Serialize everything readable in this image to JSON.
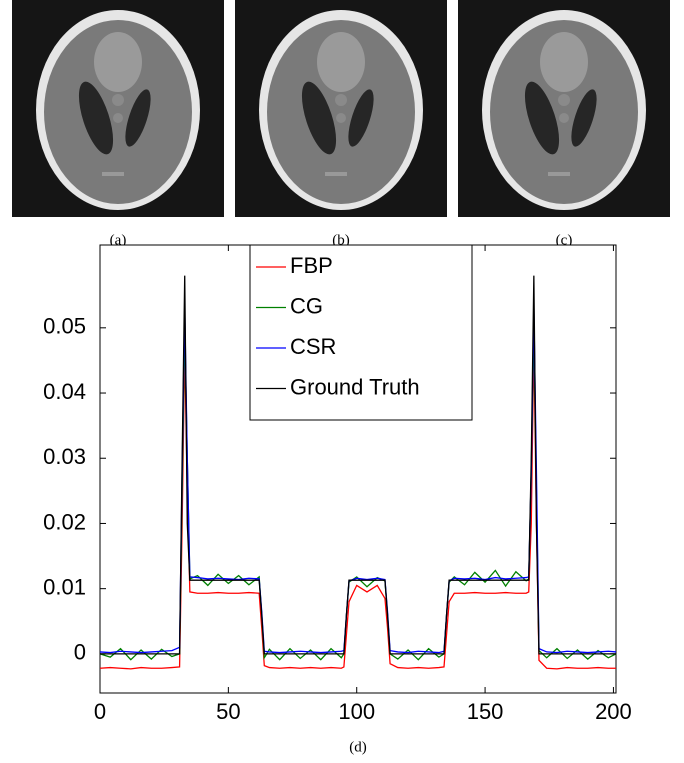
{
  "images": [
    {
      "caption": "(a)"
    },
    {
      "caption": "(b)"
    },
    {
      "caption": "(c)"
    }
  ],
  "chart_data": {
    "type": "line",
    "caption": "(d)",
    "x": [
      0,
      4,
      8,
      12,
      16,
      20,
      24,
      28,
      31,
      32,
      33,
      34,
      35,
      38,
      42,
      46,
      50,
      54,
      58,
      62,
      63,
      64,
      66,
      70,
      74,
      78,
      82,
      86,
      90,
      94,
      95,
      96,
      97,
      100,
      104,
      108,
      111,
      112,
      113,
      116,
      120,
      124,
      128,
      132,
      134,
      135,
      136,
      138,
      142,
      146,
      150,
      154,
      158,
      162,
      166,
      167,
      168,
      169,
      170,
      171,
      174,
      178,
      182,
      186,
      190,
      194,
      198,
      201
    ],
    "series": [
      {
        "name": "FBP",
        "color": "#ff0000",
        "values": [
          -0.0022,
          -0.0021,
          -0.0022,
          -0.0023,
          -0.0021,
          -0.0022,
          -0.0022,
          -0.0021,
          -0.002,
          0.02,
          0.047,
          0.025,
          0.0095,
          0.0093,
          0.0093,
          0.0094,
          0.0093,
          0.0093,
          0.0094,
          0.0093,
          0.004,
          -0.0018,
          -0.0021,
          -0.0022,
          -0.0021,
          -0.0022,
          -0.0021,
          -0.0022,
          -0.0021,
          -0.0022,
          -0.002,
          0.003,
          0.008,
          0.0105,
          0.0095,
          0.0105,
          0.0085,
          0.004,
          -0.0015,
          -0.0021,
          -0.0022,
          -0.0021,
          -0.0022,
          -0.0021,
          -0.002,
          0.003,
          0.008,
          0.0093,
          0.0093,
          0.0094,
          0.0093,
          0.0093,
          0.0094,
          0.0093,
          0.0093,
          0.0095,
          0.02,
          0.048,
          0.02,
          -0.001,
          -0.0022,
          -0.0023,
          -0.0021,
          -0.0022,
          -0.0022,
          -0.0021,
          -0.0022,
          -0.0022
        ]
      },
      {
        "name": "CG",
        "color": "#008000",
        "values": [
          0,
          -0.0005,
          0.0008,
          -0.0009,
          0.0006,
          -0.0008,
          0.0007,
          -0.0004,
          0,
          0.025,
          0.05,
          0.03,
          0.0115,
          0.012,
          0.0105,
          0.0122,
          0.0108,
          0.012,
          0.0106,
          0.0118,
          0.006,
          -0.0006,
          0.0007,
          -0.0009,
          0.0008,
          -0.0007,
          0.0006,
          -0.0009,
          0.0008,
          -0.0006,
          0,
          0.006,
          0.011,
          0.0118,
          0.0103,
          0.0117,
          0.0112,
          0.006,
          0,
          -0.0008,
          0.0006,
          -0.0009,
          0.0008,
          -0.0005,
          0,
          0.006,
          0.011,
          0.0118,
          0.0106,
          0.0125,
          0.011,
          0.0128,
          0.0104,
          0.0126,
          0.0112,
          0.0115,
          0.028,
          0.05,
          0.025,
          0.0005,
          -0.0006,
          0.0008,
          -0.0007,
          0.0006,
          -0.0008,
          0.0005,
          -0.0006,
          0
        ]
      },
      {
        "name": "CSR",
        "color": "#0000ff",
        "values": [
          0.0003,
          0.0002,
          0.0004,
          0.0003,
          0.0002,
          0.0003,
          0.0004,
          0.0005,
          0.001,
          0.028,
          0.053,
          0.03,
          0.0118,
          0.0117,
          0.0115,
          0.0116,
          0.0115,
          0.0114,
          0.0116,
          0.0115,
          0.0065,
          0.0004,
          0.0003,
          0.0002,
          0.0003,
          0.0004,
          0.0003,
          0.0002,
          0.0003,
          0.0004,
          0.0005,
          0.006,
          0.0112,
          0.0116,
          0.0114,
          0.0116,
          0.0114,
          0.0065,
          0.0005,
          0.0003,
          0.0002,
          0.0004,
          0.0003,
          0.0002,
          0.0004,
          0.006,
          0.0112,
          0.0116,
          0.0115,
          0.0116,
          0.0114,
          0.0117,
          0.0115,
          0.0116,
          0.0117,
          0.0118,
          0.028,
          0.053,
          0.028,
          0.0008,
          0.0003,
          0.0002,
          0.0004,
          0.0003,
          0.0002,
          0.0003,
          0.0004,
          0.0003
        ]
      },
      {
        "name": "Ground Truth",
        "color": "#000000",
        "values": [
          0,
          0,
          0,
          0,
          0,
          0,
          0,
          0,
          0,
          0.03,
          0.058,
          0.02,
          0.0113,
          0.0113,
          0.0113,
          0.0113,
          0.0113,
          0.0113,
          0.0113,
          0.0113,
          0.006,
          0,
          0,
          0,
          0,
          0,
          0,
          0,
          0,
          0,
          0,
          0.006,
          0.0113,
          0.0113,
          0.0113,
          0.0113,
          0.0113,
          0.006,
          0,
          0,
          0,
          0,
          0,
          0,
          0,
          0.006,
          0.0113,
          0.0113,
          0.0113,
          0.0113,
          0.0113,
          0.0113,
          0.0113,
          0.0113,
          0.0113,
          0.0113,
          0.03,
          0.058,
          0.02,
          0,
          0,
          0,
          0,
          0,
          0,
          0,
          0,
          0
        ]
      }
    ],
    "xlim": [
      0,
      201
    ],
    "ylim": [
      -0.006,
      0.0627
    ],
    "xticks": [
      0,
      50,
      100,
      150,
      200
    ],
    "yticks": [
      0,
      0.01,
      0.02,
      0.03,
      0.04,
      0.05
    ],
    "legend": "upper center",
    "grid": false
  }
}
